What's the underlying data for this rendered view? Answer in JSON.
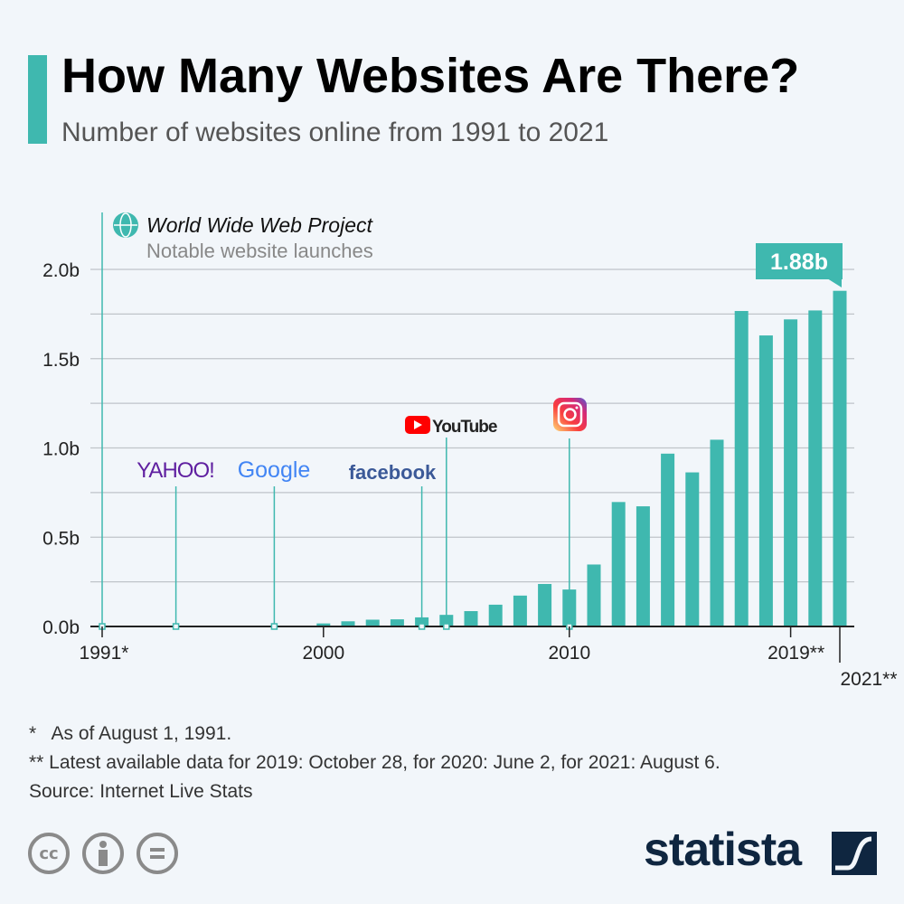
{
  "header": {
    "title": "How Many Websites Are There?",
    "subtitle": "Number of websites online from 1991 to 2021"
  },
  "chart_data": {
    "type": "bar",
    "title": "How Many Websites Are There?",
    "subtitle": "Number of websites online from 1991 to 2021",
    "x": [
      1991,
      1992,
      1993,
      1994,
      1995,
      1996,
      1997,
      1998,
      1999,
      2000,
      2001,
      2002,
      2003,
      2004,
      2005,
      2006,
      2007,
      2008,
      2009,
      2010,
      2011,
      2012,
      2013,
      2014,
      2015,
      2016,
      2017,
      2018,
      2019,
      2020,
      2021
    ],
    "values": [
      1e-09,
      1e-08,
      1.3e-07,
      2.7e-06,
      2.35e-05,
      0.00026,
      0.0011,
      0.0024,
      0.0032,
      0.017,
      0.029,
      0.038,
      0.04,
      0.051,
      0.065,
      0.086,
      0.122,
      0.173,
      0.238,
      0.207,
      0.347,
      0.697,
      0.673,
      0.968,
      0.863,
      1.046,
      1.767,
      1.63,
      1.72,
      1.77,
      1.88
    ],
    "unit": "b",
    "ylim": [
      0,
      2.2
    ],
    "yticks": [
      "0.0b",
      "0.5b",
      "1.0b",
      "1.5b",
      "2.0b"
    ],
    "ytick_values": [
      0,
      0.5,
      1.0,
      1.5,
      2.0
    ],
    "xtick_labels": [
      {
        "year": 1991,
        "label": "1991*"
      },
      {
        "year": 2000,
        "label": "2000"
      },
      {
        "year": 2010,
        "label": "2010"
      },
      {
        "year": 2019,
        "label": "2019**"
      },
      {
        "year": 2021,
        "label": "2021**"
      }
    ],
    "grid": true,
    "bar_color": "#3fb8af",
    "callout": {
      "year": 2021,
      "label": "1.88b"
    },
    "annotation_title": "World Wide Web Project",
    "annotation_subtitle": "Notable website launches",
    "launches": [
      {
        "year": 1991,
        "name": "World Wide Web Project",
        "icon": "globe-icon"
      },
      {
        "year": 1994,
        "name": "YAHOO!",
        "icon": "yahoo-logo"
      },
      {
        "year": 1998,
        "name": "Google",
        "icon": "google-logo"
      },
      {
        "year": 2004,
        "name": "facebook",
        "icon": "facebook-logo"
      },
      {
        "year": 2005,
        "name": "YouTube",
        "icon": "youtube-logo"
      },
      {
        "year": 2010,
        "name": "Instagram",
        "icon": "instagram-logo"
      }
    ]
  },
  "footer": {
    "note1": "*   As of August 1, 1991.",
    "note2": "** Latest available data for 2019: October 28, for 2020: June 2, for 2021: August 6.",
    "source": "Source: Internet Live Stats",
    "license_icons": [
      "cc-icon",
      "attribution-icon",
      "no-derivatives-icon"
    ],
    "cc_label": "cc",
    "brand": "statista"
  }
}
